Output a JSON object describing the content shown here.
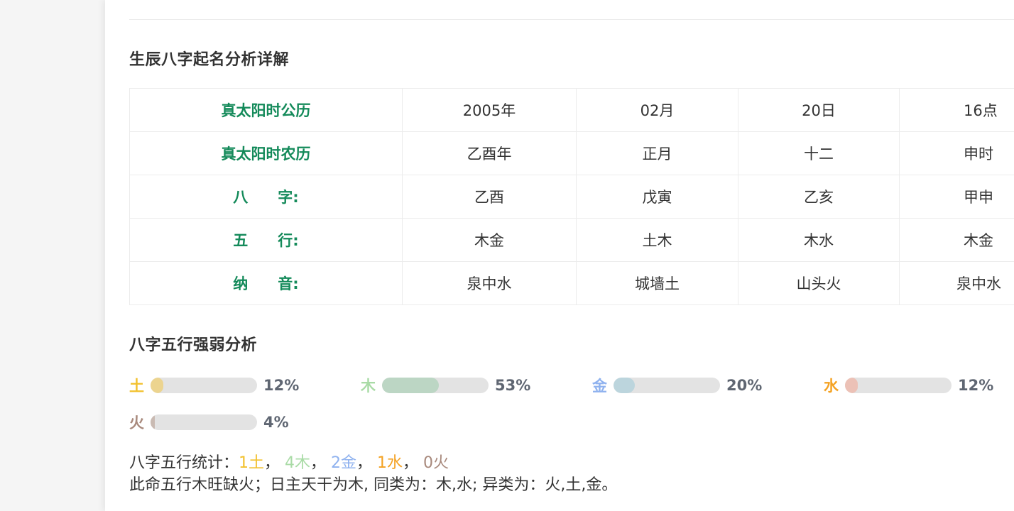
{
  "section1": {
    "title": "生辰八字起名分析详解"
  },
  "bazi_table": {
    "rows": [
      {
        "label": "真太阳时公历",
        "cells": [
          "2005年",
          "02月",
          "20日",
          "16点"
        ]
      },
      {
        "label": "真太阳时农历",
        "cells": [
          "乙酉年",
          "正月",
          "十二",
          "申时"
        ]
      },
      {
        "label": "八　　字:",
        "cells": [
          "乙酉",
          "戊寅",
          "乙亥",
          "甲申"
        ]
      },
      {
        "label": "五　　行:",
        "cells": [
          "木金",
          "土木",
          "木水",
          "木金"
        ]
      },
      {
        "label": "纳　　音:",
        "cells": [
          "泉中水",
          "城墙土",
          "山头火",
          "泉中水"
        ]
      }
    ]
  },
  "section2": {
    "title": "八字五行强弱分析"
  },
  "strength": [
    {
      "name": "土",
      "percent_label": "12%",
      "value": 12,
      "label_color": "#f2c12e",
      "bar_color": "#ecd48f"
    },
    {
      "name": "木",
      "percent_label": "53%",
      "value": 53,
      "label_color": "#a9dba6",
      "bar_color": "#bcd6c4"
    },
    {
      "name": "金",
      "percent_label": "20%",
      "value": 20,
      "label_color": "#8fb2ef",
      "bar_color": "#bcd5dd"
    },
    {
      "name": "水",
      "percent_label": "12%",
      "value": 12,
      "label_color": "#f4a223",
      "bar_color": "#ecc1b6"
    },
    {
      "name": "火",
      "percent_label": "4%",
      "value": 4,
      "label_color": "#a8897c",
      "bar_color": "#c9bab2"
    }
  ],
  "stats": {
    "prefix": "八字五行统计：",
    "items": [
      {
        "text": "1土",
        "sep": "， "
      },
      {
        "text": "4木",
        "sep": "， "
      },
      {
        "text": "2金",
        "sep": "， "
      },
      {
        "text": "1水",
        "sep": "， "
      },
      {
        "text": "0火",
        "sep": ""
      }
    ]
  },
  "summary": "此命五行木旺缺火；日主天干为木, 同类为：木,水; 异类为：火,土,金。"
}
